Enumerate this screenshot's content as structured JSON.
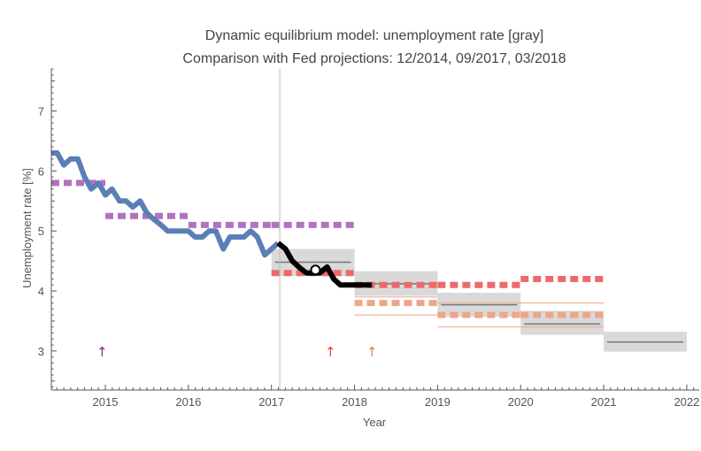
{
  "chart_data": {
    "type": "line",
    "title": "Dynamic equilibrium model: unemployment rate [gray]",
    "subtitle": "Comparison with Fed projections: 12/2014, 09/2017, 03/2018",
    "xlabel": "Year",
    "ylabel": "Unemployment rate [%]",
    "xlim": [
      2014.35,
      2022.15
    ],
    "ylim": [
      2.35,
      7.7
    ],
    "x_ticks": [
      2015,
      2016,
      2017,
      2018,
      2019,
      2020,
      2021,
      2022
    ],
    "y_ticks": [
      3,
      4,
      5,
      6,
      7
    ],
    "vertical_line_x": 2017.1,
    "colors": {
      "data": "#5b7fb5",
      "post_data": "#000000",
      "model_band": "#d9d9d9",
      "model_line": "#777777",
      "proj_2014": "#b571c2",
      "proj_2017": "#ee6a6a",
      "proj_2018": "#eea58a",
      "arrow_2014": "#8a2c8a",
      "arrow_2017": "#e84545",
      "arrow_2018": "#ec7a5a"
    },
    "unemployment_data": {
      "x": [
        2014.35,
        2014.42,
        2014.5,
        2014.58,
        2014.67,
        2014.75,
        2014.83,
        2014.92,
        2015.0,
        2015.08,
        2015.17,
        2015.25,
        2015.33,
        2015.42,
        2015.5,
        2015.58,
        2015.67,
        2015.75,
        2015.83,
        2015.92,
        2016.0,
        2016.08,
        2016.17,
        2016.25,
        2016.33,
        2016.42,
        2016.5,
        2016.58,
        2016.67,
        2016.75,
        2016.83,
        2016.92,
        2017.0,
        2017.08
      ],
      "y": [
        6.3,
        6.3,
        6.1,
        6.2,
        6.2,
        5.9,
        5.7,
        5.8,
        5.6,
        5.7,
        5.5,
        5.5,
        5.4,
        5.5,
        5.3,
        5.2,
        5.1,
        5.0,
        5.0,
        5.0,
        5.0,
        4.9,
        4.9,
        5.0,
        5.0,
        4.7,
        4.9,
        4.9,
        4.9,
        5.0,
        4.9,
        4.6,
        4.7,
        4.8
      ]
    },
    "post_data": {
      "x": [
        2017.08,
        2017.17,
        2017.25,
        2017.33,
        2017.42,
        2017.5,
        2017.58,
        2017.67,
        2017.75,
        2017.83,
        2017.92,
        2018.0,
        2018.08,
        2018.21
      ],
      "y": [
        4.8,
        4.7,
        4.5,
        4.4,
        4.3,
        4.3,
        4.3,
        4.4,
        4.2,
        4.1,
        4.1,
        4.1,
        4.1,
        4.1
      ]
    },
    "open_marker": {
      "x": 2017.53,
      "y": 4.35
    },
    "model_bands": [
      {
        "x0": 2017.0,
        "x1": 2018.0,
        "lo": 4.25,
        "hi": 4.7,
        "mid": 4.48
      },
      {
        "x0": 2018.0,
        "x1": 2019.0,
        "lo": 3.92,
        "hi": 4.33,
        "mid": 4.12
      },
      {
        "x0": 2019.0,
        "x1": 2020.0,
        "lo": 3.57,
        "hi": 3.97,
        "mid": 3.77
      },
      {
        "x0": 2020.0,
        "x1": 2021.0,
        "lo": 3.27,
        "hi": 3.67,
        "mid": 3.45
      },
      {
        "x0": 2021.0,
        "x1": 2022.0,
        "lo": 2.99,
        "hi": 3.32,
        "mid": 3.15
      }
    ],
    "projections": [
      {
        "name": "12/2014",
        "color": "#b571c2",
        "segments": [
          {
            "x0": 2014.35,
            "x1": 2015.0,
            "y": 5.8
          },
          {
            "x0": 2015.0,
            "x1": 2016.0,
            "y": 5.25
          },
          {
            "x0": 2016.0,
            "x1": 2017.0,
            "y": 5.1
          },
          {
            "x0": 2017.0,
            "x1": 2018.0,
            "y": 5.1
          }
        ]
      },
      {
        "name": "09/2017",
        "color": "#ee6a6a",
        "segments": [
          {
            "x0": 2017.0,
            "x1": 2018.0,
            "y": 4.3
          },
          {
            "x0": 2018.0,
            "x1": 2019.0,
            "y": 4.1
          },
          {
            "x0": 2019.0,
            "x1": 2020.0,
            "y": 4.1
          },
          {
            "x0": 2020.0,
            "x1": 2021.0,
            "y": 4.2
          }
        ]
      },
      {
        "name": "03/2018",
        "color": "#eea58a",
        "segments": [
          {
            "x0": 2018.0,
            "x1": 2019.0,
            "y": 3.8
          },
          {
            "x0": 2019.0,
            "x1": 2020.0,
            "y": 3.6
          },
          {
            "x0": 2020.0,
            "x1": 2021.0,
            "y": 3.6
          }
        ]
      }
    ],
    "projection_ranges_2018": [
      {
        "x0": 2018.0,
        "x1": 2019.0,
        "lo": 3.6,
        "hi": 3.9
      },
      {
        "x0": 2019.0,
        "x1": 2020.0,
        "lo": 3.4,
        "hi": 3.8
      },
      {
        "x0": 2020.0,
        "x1": 2021.0,
        "lo": 3.4,
        "hi": 3.8
      }
    ],
    "arrows": [
      {
        "x": 2014.96,
        "y": 3.0,
        "glyph": "↑",
        "color": "#8a2c8a"
      },
      {
        "x": 2017.71,
        "y": 3.0,
        "glyph": "↑",
        "color": "#e84545"
      },
      {
        "x": 2018.21,
        "y": 3.0,
        "glyph": "↑",
        "color": "#ec7a5a"
      }
    ]
  }
}
